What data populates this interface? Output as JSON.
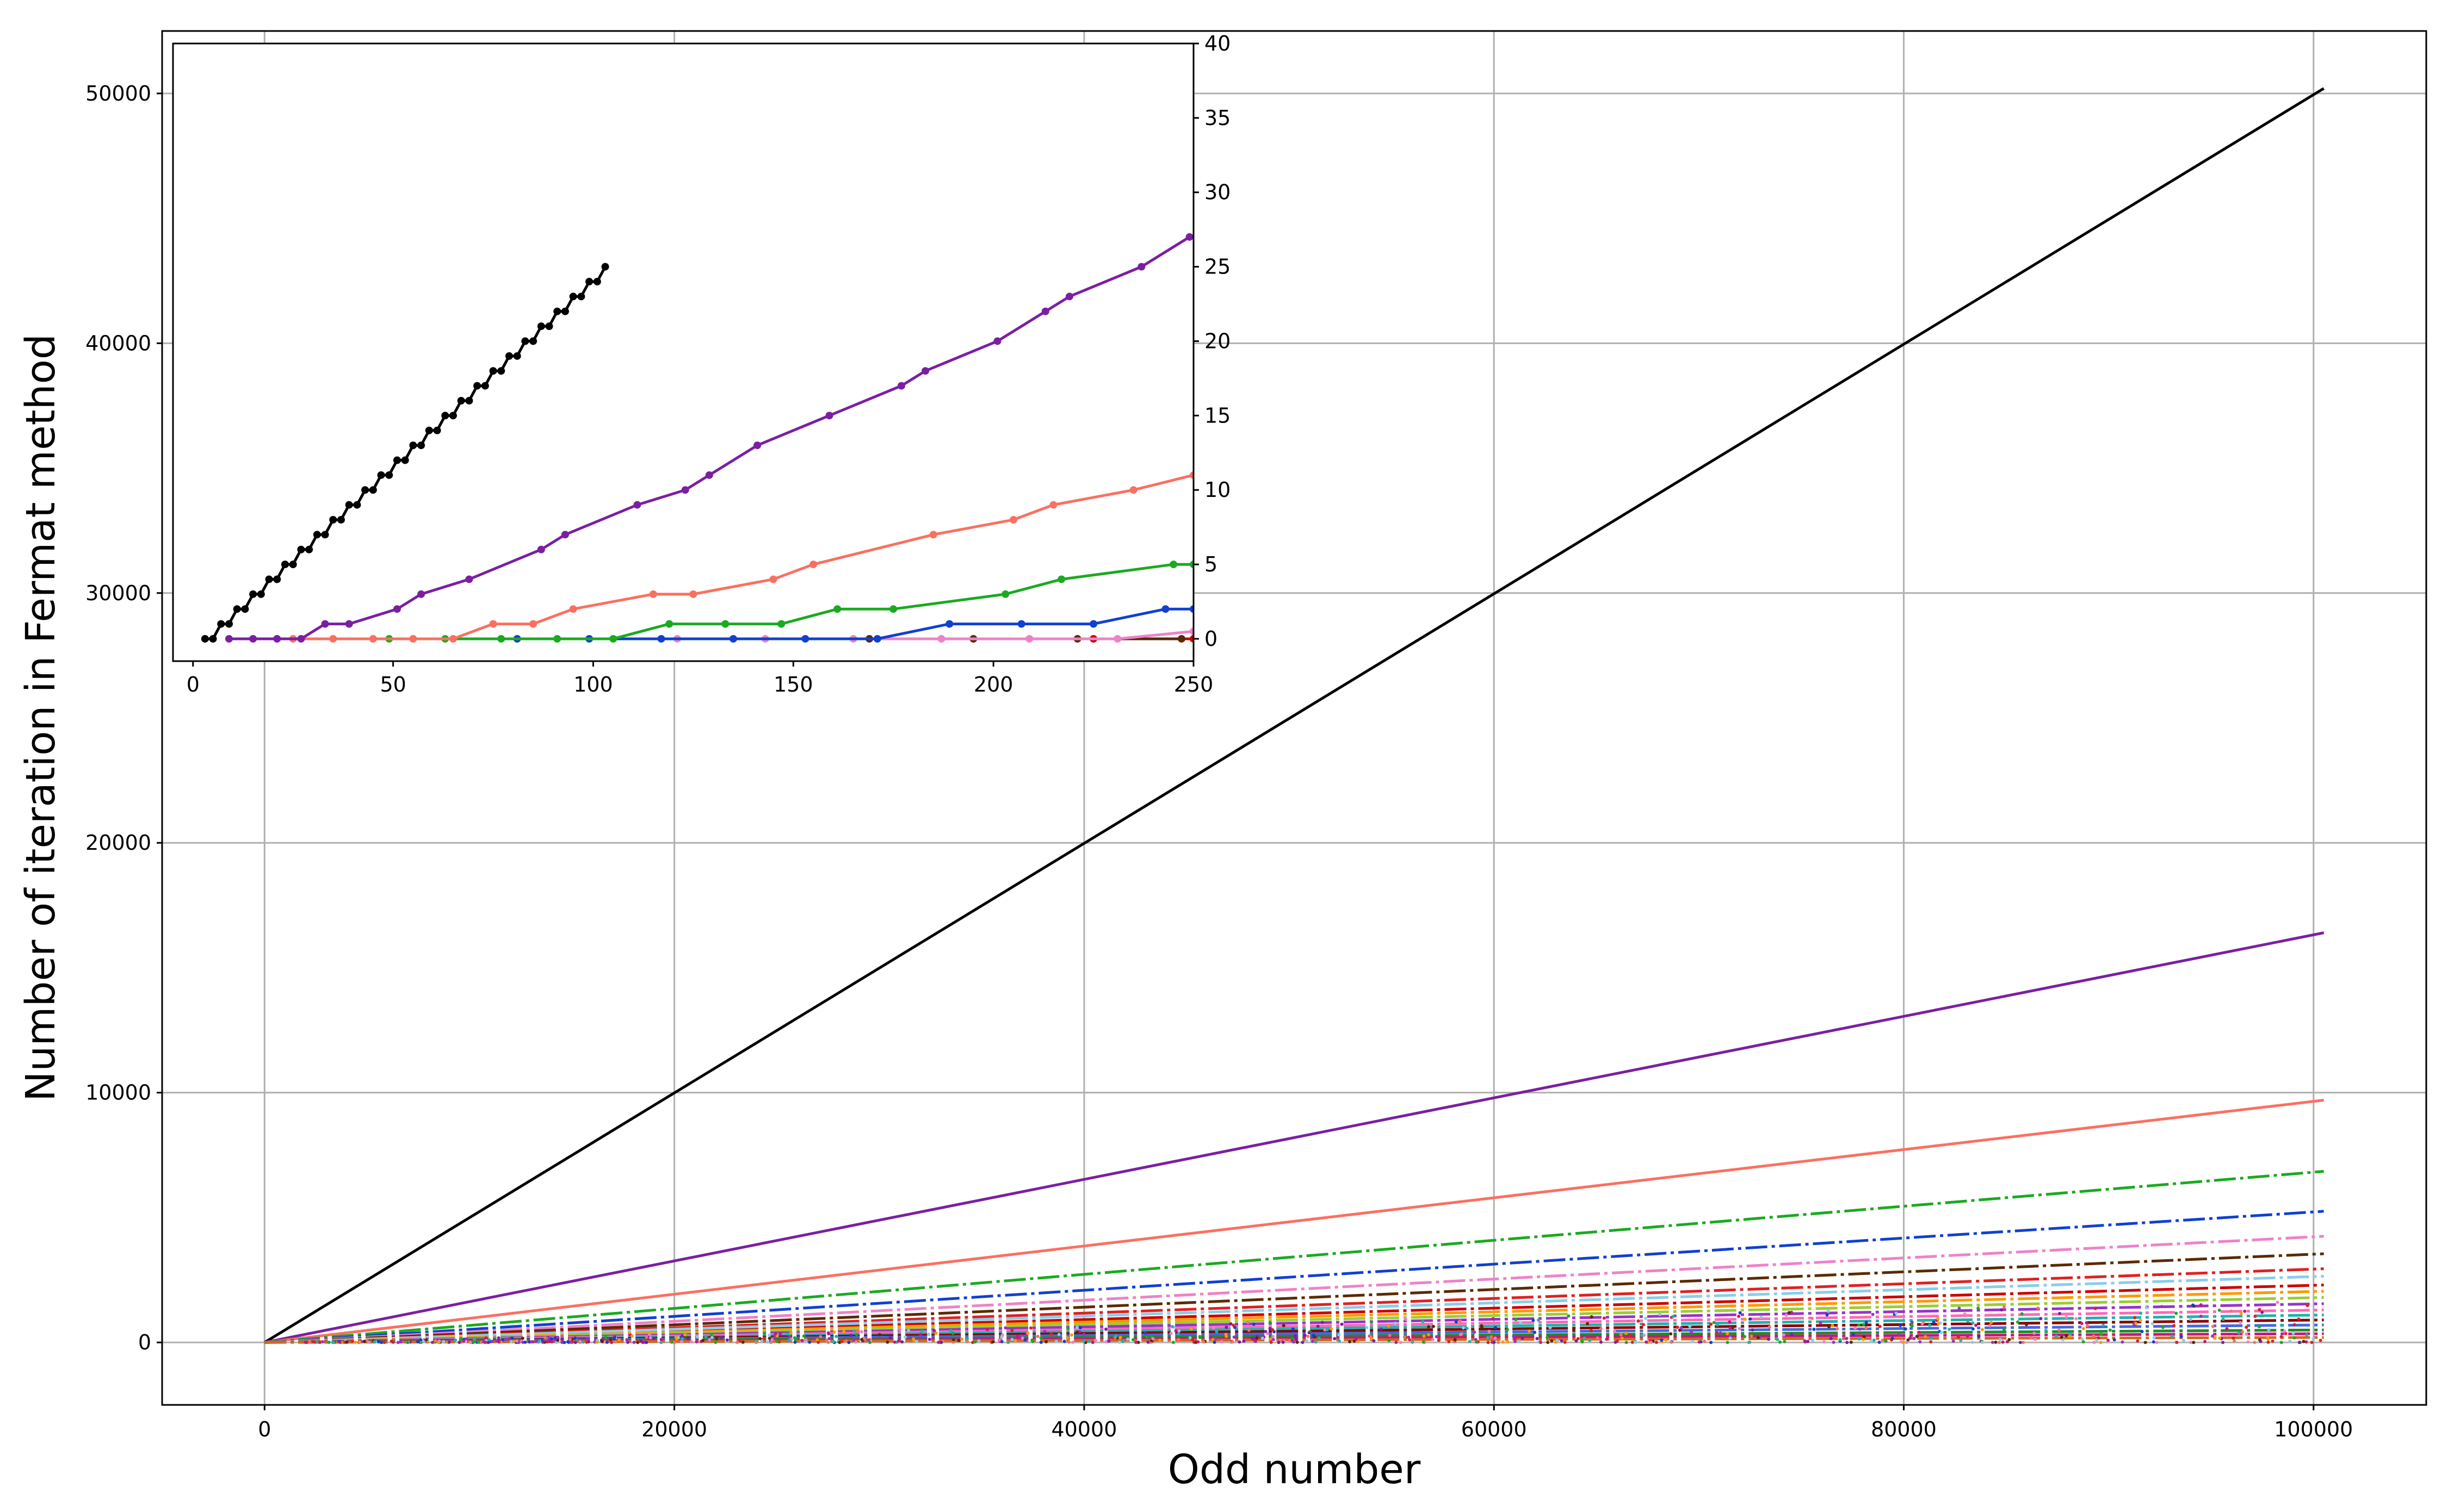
{
  "chart_data": [
    {
      "id": "main",
      "type": "line",
      "title": "",
      "xlabel": "Odd number",
      "ylabel": "Number of iteration in Fermat method",
      "xlim": [
        -5000,
        105500
      ],
      "ylim": [
        -2500,
        52500
      ],
      "xticks": [
        0,
        20000,
        40000,
        60000,
        80000,
        100000
      ],
      "yticks": [
        0,
        10000,
        20000,
        30000,
        40000,
        50000
      ],
      "grid": true,
      "series": [
        {
          "color": "#000000",
          "style": "solid",
          "x": [
            0,
            100500
          ],
          "y": [
            0,
            50200
          ]
        },
        {
          "color": "#7b1fa2",
          "style": "solid",
          "x": [
            0,
            100500
          ],
          "y": [
            0,
            16400
          ]
        },
        {
          "color": "#fa7060",
          "style": "solid",
          "x": [
            0,
            100500
          ],
          "y": [
            0,
            9700
          ]
        },
        {
          "color": "#1aaa20",
          "style": "dashdot",
          "x": [
            0,
            100500
          ],
          "y": [
            0,
            6850
          ]
        },
        {
          "color": "#1040d0",
          "style": "dashdot",
          "x": [
            0,
            100500
          ],
          "y": [
            0,
            5250
          ]
        },
        {
          "color": "#ee82c8",
          "style": "dashdot",
          "x": [
            0,
            100500
          ],
          "y": [
            0,
            4250
          ]
        },
        {
          "color": "#5a2a00",
          "style": "dashdot",
          "x": [
            0,
            100500
          ],
          "y": [
            0,
            3550
          ]
        },
        {
          "color": "#e02020",
          "style": "dashdot",
          "x": [
            0,
            100500
          ],
          "y": [
            0,
            2950
          ]
        },
        {
          "color": "#cc0000",
          "style": "dashdot",
          "x": [
            0,
            100500
          ],
          "y": [
            0,
            2300
          ]
        },
        {
          "color": "#87ceeb",
          "style": "dashdot",
          "x": [
            0,
            100500
          ],
          "y": [
            0,
            2650
          ]
        },
        {
          "color": "#ff9900",
          "style": "dashdot",
          "x": [
            0,
            100500
          ],
          "y": [
            0,
            2050
          ]
        },
        {
          "color": "#9acd32",
          "style": "dashdot",
          "x": [
            0,
            100500
          ],
          "y": [
            0,
            1800
          ]
        },
        {
          "color": "#9932cc",
          "style": "dashdot",
          "x": [
            0,
            100500
          ],
          "y": [
            0,
            1550
          ]
        },
        {
          "color": "#ff69b4",
          "style": "dashdot",
          "x": [
            0,
            100500
          ],
          "y": [
            0,
            1300
          ]
        },
        {
          "color": "#20b2aa",
          "style": "dashdot",
          "x": [
            0,
            100500
          ],
          "y": [
            0,
            1100
          ]
        },
        {
          "color": "#8b0000",
          "style": "dashdot",
          "x": [
            0,
            100500
          ],
          "y": [
            0,
            900
          ]
        },
        {
          "color": "#4169e1",
          "style": "dashdot",
          "x": [
            0,
            100500
          ],
          "y": [
            0,
            700
          ]
        },
        {
          "color": "#228b22",
          "style": "dashdot",
          "x": [
            0,
            100500
          ],
          "y": [
            0,
            500
          ]
        },
        {
          "color": "#c71585",
          "style": "dashdot",
          "x": [
            0,
            100500
          ],
          "y": [
            0,
            350
          ]
        },
        {
          "color": "#d2691e",
          "style": "dashdot",
          "x": [
            0,
            100500
          ],
          "y": [
            0,
            200
          ]
        }
      ]
    },
    {
      "id": "inset",
      "type": "line",
      "title": "",
      "xlabel": "",
      "ylabel": "",
      "xlim": [
        -5,
        250
      ],
      "ylim": [
        -1.5,
        40
      ],
      "xticks": [
        0,
        50,
        100,
        150,
        200,
        250
      ],
      "yticks": [
        0,
        5,
        10,
        15,
        20,
        25,
        30,
        35,
        40
      ],
      "yaxis_side": "right",
      "grid": false,
      "markers": true,
      "series": [
        {
          "color": "#000000",
          "x": [
            3,
            5,
            7,
            9,
            11,
            13,
            15,
            17,
            19,
            21,
            23,
            25,
            27,
            29,
            31,
            33,
            35,
            37,
            39,
            41,
            43,
            45,
            47,
            49,
            51,
            53,
            55,
            57,
            59,
            61,
            63,
            65,
            67,
            69,
            71,
            73,
            75,
            77,
            79,
            81,
            83,
            85,
            87,
            89,
            91,
            93,
            95,
            97,
            99,
            101,
            103
          ],
          "y": [
            0,
            0,
            1,
            1,
            2,
            2,
            3,
            3,
            4,
            4,
            5,
            5,
            6,
            6,
            7,
            7,
            8,
            8,
            9,
            9,
            10,
            10,
            11,
            11,
            12,
            12,
            13,
            13,
            14,
            14,
            15,
            15,
            16,
            16,
            17,
            17,
            18,
            18,
            19,
            19,
            20,
            20,
            21,
            21,
            22,
            22,
            23,
            23,
            24,
            24,
            25
          ]
        },
        {
          "color": "#7b1fa2",
          "x": [
            9,
            15,
            21,
            27,
            33,
            39,
            51,
            57,
            69,
            87,
            93,
            111,
            123,
            129,
            141,
            159,
            177,
            183,
            201,
            213,
            219,
            237,
            249
          ],
          "y": [
            0,
            0,
            0,
            0,
            1,
            1,
            2,
            3,
            4,
            6,
            7,
            9,
            10,
            11,
            13,
            15,
            17,
            18,
            20,
            22,
            23,
            25,
            27
          ]
        },
        {
          "color": "#fa7060",
          "x": [
            25,
            35,
            45,
            55,
            65,
            75,
            85,
            95,
            115,
            125,
            145,
            155,
            185,
            205,
            215,
            235,
            250
          ],
          "y": [
            0,
            0,
            0,
            0,
            0,
            1,
            1,
            2,
            3,
            3,
            4,
            5,
            7,
            8,
            9,
            10,
            11
          ]
        },
        {
          "color": "#1aaa20",
          "x": [
            49,
            63,
            77,
            91,
            105,
            119,
            133,
            147,
            161,
            175,
            203,
            217,
            245,
            250
          ],
          "y": [
            0,
            0,
            0,
            0,
            0,
            1,
            1,
            1,
            2,
            2,
            3,
            4,
            5,
            5
          ]
        },
        {
          "color": "#1040d0",
          "x": [
            81,
            99,
            117,
            135,
            153,
            171,
            189,
            207,
            225,
            243,
            250
          ],
          "y": [
            0,
            0,
            0,
            0,
            0,
            0,
            1,
            1,
            1,
            2,
            2
          ]
        },
        {
          "color": "#ee82c8",
          "x": [
            121,
            143,
            165,
            187,
            209,
            231,
            250
          ],
          "y": [
            0,
            0,
            0,
            0,
            0,
            0,
            0.5
          ]
        },
        {
          "color": "#5a2a00",
          "x": [
            169,
            195,
            221,
            247
          ],
          "y": [
            0,
            0,
            0,
            0
          ]
        },
        {
          "color": "#cc0000",
          "x": [
            225,
            250
          ],
          "y": [
            0,
            0
          ]
        }
      ]
    }
  ]
}
